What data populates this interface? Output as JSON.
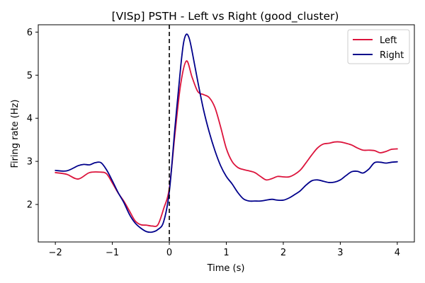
{
  "chart_data": {
    "type": "line",
    "title": "[VISp] PSTH - Left vs Right (good_cluster)",
    "xlabel": "Time (s)",
    "ylabel": "Firing rate (Hz)",
    "xlim": [
      -2.3,
      4.3
    ],
    "ylim": [
      1.13,
      6.17
    ],
    "x_ticks": [
      -2,
      -1,
      0,
      1,
      2,
      3,
      4
    ],
    "x_tick_labels": [
      "−2",
      "−1",
      "0",
      "1",
      "2",
      "3",
      "4"
    ],
    "y_ticks": [
      2,
      3,
      4,
      5,
      6
    ],
    "y_tick_labels": [
      "2",
      "3",
      "4",
      "5",
      "6"
    ],
    "grid": false,
    "legend_position": "top-right",
    "vline": {
      "x": 0,
      "style": "dashed",
      "color": "#000000"
    },
    "series": [
      {
        "name": "Left",
        "color": "#dc143c",
        "x": [
          -2.0,
          -1.8,
          -1.6,
          -1.4,
          -1.2,
          -1.1,
          -1.0,
          -0.9,
          -0.8,
          -0.7,
          -0.6,
          -0.5,
          -0.4,
          -0.3,
          -0.2,
          -0.1,
          0.0,
          0.1,
          0.2,
          0.3,
          0.4,
          0.5,
          0.6,
          0.7,
          0.8,
          0.9,
          1.0,
          1.1,
          1.2,
          1.3,
          1.4,
          1.5,
          1.6,
          1.7,
          1.8,
          1.9,
          2.0,
          2.1,
          2.2,
          2.3,
          2.4,
          2.5,
          2.6,
          2.7,
          2.8,
          2.9,
          3.0,
          3.1,
          3.2,
          3.3,
          3.4,
          3.5,
          3.6,
          3.7,
          3.8,
          3.9,
          4.0
        ],
        "y": [
          2.74,
          2.7,
          2.59,
          2.74,
          2.75,
          2.71,
          2.5,
          2.27,
          2.08,
          1.85,
          1.62,
          1.53,
          1.52,
          1.5,
          1.53,
          1.9,
          2.38,
          3.65,
          4.8,
          5.33,
          4.95,
          4.62,
          4.55,
          4.48,
          4.25,
          3.8,
          3.3,
          3.0,
          2.86,
          2.81,
          2.78,
          2.74,
          2.65,
          2.57,
          2.6,
          2.65,
          2.64,
          2.64,
          2.7,
          2.8,
          2.97,
          3.15,
          3.31,
          3.4,
          3.42,
          3.45,
          3.45,
          3.42,
          3.38,
          3.31,
          3.26,
          3.26,
          3.25,
          3.2,
          3.23,
          3.28,
          3.29
        ]
      },
      {
        "name": "Right",
        "color": "#00008b",
        "x": [
          -2.0,
          -1.8,
          -1.6,
          -1.5,
          -1.4,
          -1.3,
          -1.2,
          -1.1,
          -1.0,
          -0.9,
          -0.8,
          -0.7,
          -0.6,
          -0.5,
          -0.4,
          -0.3,
          -0.2,
          -0.1,
          0.0,
          0.1,
          0.2,
          0.25,
          0.3,
          0.35,
          0.4,
          0.5,
          0.6,
          0.7,
          0.8,
          0.9,
          1.0,
          1.1,
          1.2,
          1.3,
          1.4,
          1.5,
          1.6,
          1.7,
          1.8,
          1.9,
          2.0,
          2.1,
          2.2,
          2.3,
          2.4,
          2.5,
          2.6,
          2.7,
          2.8,
          2.9,
          3.0,
          3.1,
          3.2,
          3.3,
          3.4,
          3.5,
          3.6,
          3.7,
          3.8,
          3.9,
          4.0
        ],
        "y": [
          2.79,
          2.78,
          2.9,
          2.93,
          2.92,
          2.97,
          2.97,
          2.8,
          2.55,
          2.28,
          2.05,
          1.77,
          1.57,
          1.45,
          1.37,
          1.36,
          1.42,
          1.6,
          2.3,
          3.8,
          5.2,
          5.75,
          5.95,
          5.85,
          5.55,
          4.85,
          4.2,
          3.68,
          3.25,
          2.9,
          2.65,
          2.48,
          2.28,
          2.13,
          2.08,
          2.08,
          2.08,
          2.1,
          2.12,
          2.1,
          2.1,
          2.15,
          2.23,
          2.32,
          2.45,
          2.55,
          2.57,
          2.54,
          2.51,
          2.52,
          2.57,
          2.67,
          2.76,
          2.77,
          2.73,
          2.82,
          2.97,
          2.98,
          2.96,
          2.98,
          2.99
        ]
      }
    ]
  }
}
